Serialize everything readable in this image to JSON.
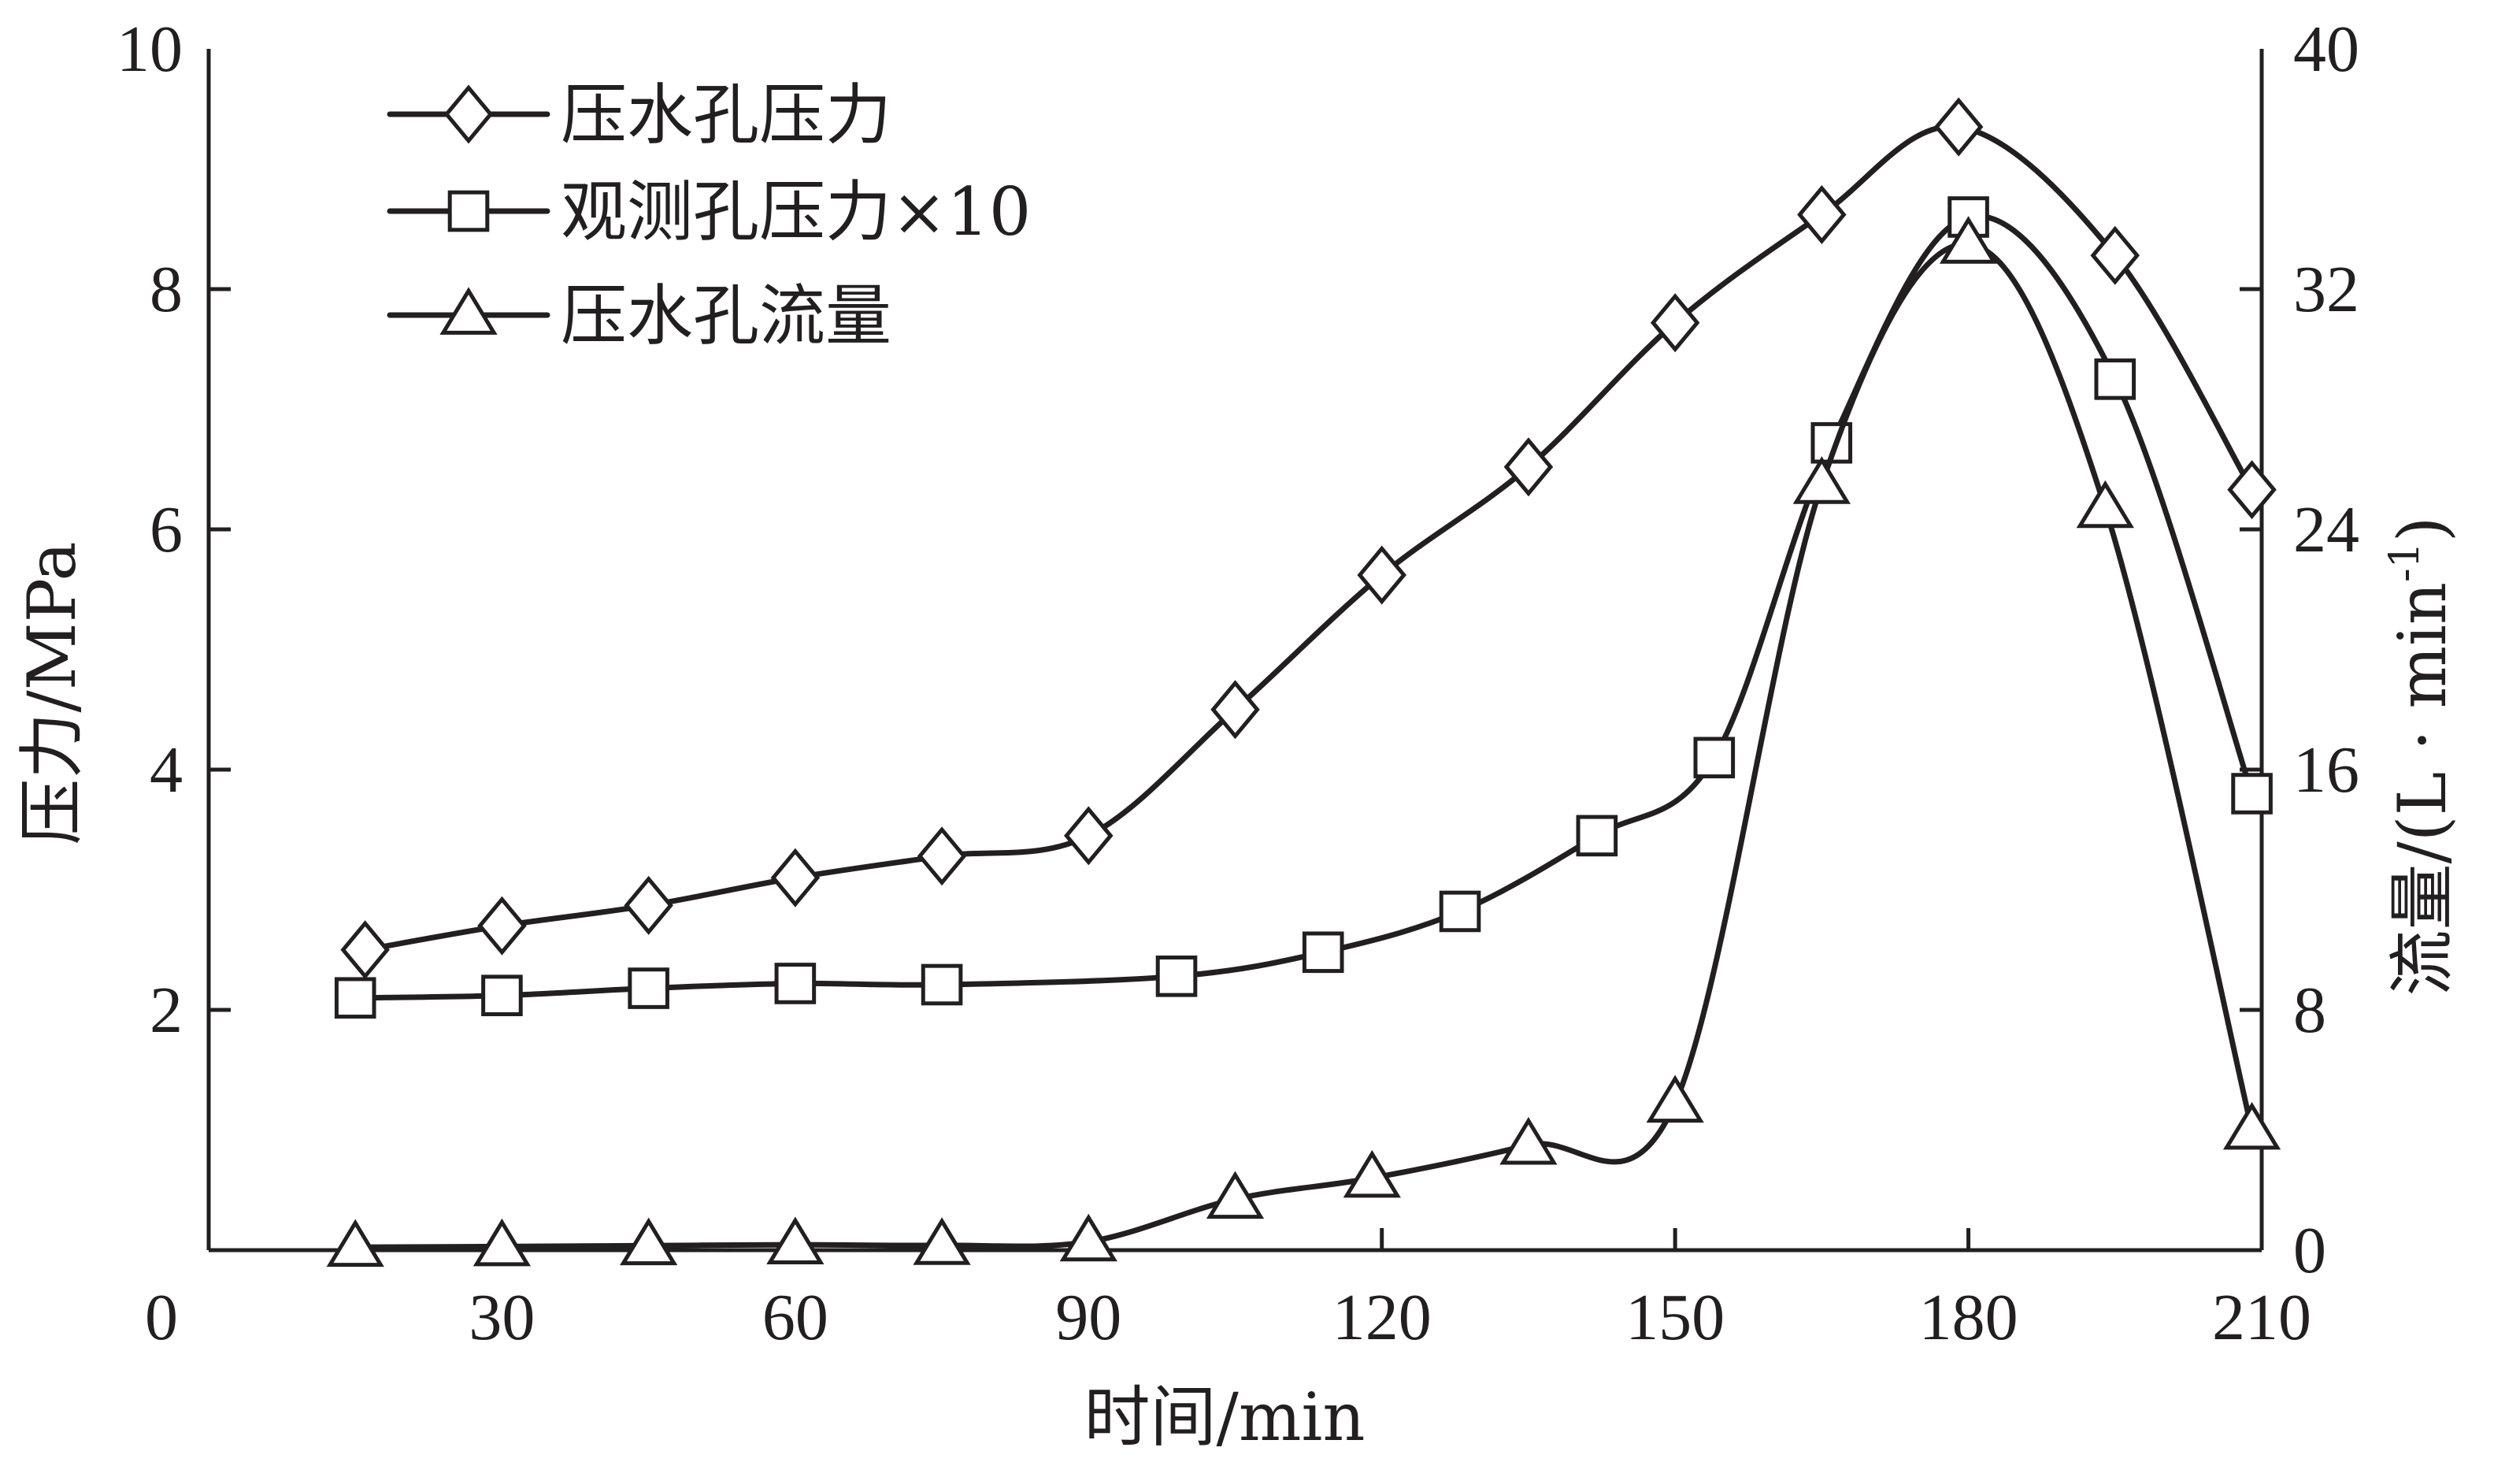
{
  "chart_data": {
    "type": "line",
    "xlabel": "时间/min",
    "ylabel": "压力/MPa",
    "y2label_main": "流量/(L · min",
    "y2label_sup": "-1",
    "y2label_close": ")",
    "xlim": [
      0,
      210
    ],
    "ylim": [
      0,
      10
    ],
    "y2lim": [
      0,
      40
    ],
    "x_ticks": [
      0,
      30,
      60,
      90,
      120,
      150,
      180,
      210
    ],
    "y_ticks": [
      2,
      4,
      6,
      8,
      10
    ],
    "y_zero_label": "0",
    "y2_ticks": [
      0,
      8,
      16,
      24,
      32,
      40
    ],
    "legend_position": "top-left",
    "grid": false,
    "series": [
      {
        "name": "压水孔压力",
        "marker": "diamond",
        "axis": "left",
        "x": [
          16,
          30,
          45,
          60,
          75,
          90,
          105,
          120,
          135,
          150,
          165,
          179,
          195,
          209
        ],
        "y": [
          2.5,
          2.7,
          2.87,
          3.1,
          3.28,
          3.45,
          4.5,
          5.62,
          6.52,
          7.72,
          8.62,
          9.35,
          8.28,
          6.33
        ]
      },
      {
        "name": "观测孔压力×10",
        "marker": "square",
        "axis": "left",
        "x": [
          15,
          30,
          45,
          60,
          75,
          99,
          114,
          128,
          142,
          154,
          166,
          180,
          195,
          209
        ],
        "y": [
          2.1,
          2.12,
          2.18,
          2.22,
          2.21,
          2.28,
          2.48,
          2.82,
          3.45,
          4.1,
          6.72,
          8.6,
          7.25,
          3.8
        ]
      },
      {
        "name": "压水孔流量",
        "marker": "triangle",
        "axis": "right",
        "x": [
          15,
          30,
          45,
          60,
          75,
          90,
          105,
          119,
          135,
          150,
          165,
          180,
          194,
          209
        ],
        "y": [
          0.1,
          0.12,
          0.15,
          0.18,
          0.16,
          0.28,
          1.7,
          2.4,
          3.5,
          4.9,
          25.5,
          33.5,
          24.7,
          4.0
        ]
      }
    ]
  }
}
